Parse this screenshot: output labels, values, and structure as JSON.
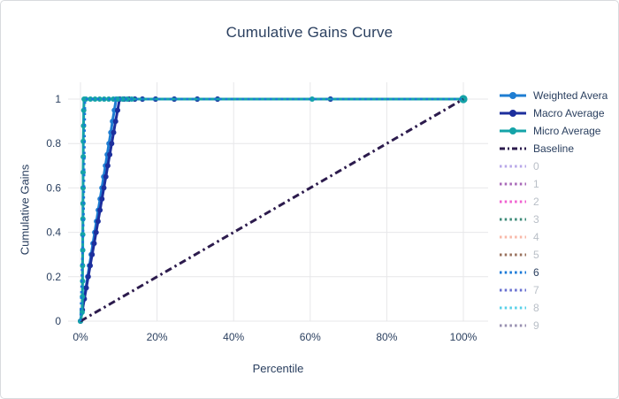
{
  "title": "Cumulative Gains Curve",
  "colors": {
    "text": "#2a3f5f",
    "inactive_text": "#b9bfc7",
    "grid": "#e7e7e9",
    "card_border": "#d8dade",
    "background": "#ffffff",
    "weighted": "#1e7dd2",
    "macro": "#1d2f9d",
    "micro": "#14a3a8",
    "baseline": "#2c1b4d",
    "class6": "#1878d8"
  },
  "chart_data": {
    "type": "line",
    "title": "Cumulative Gains Curve",
    "xlabel": "Percentile",
    "ylabel": "Cumulative Gains",
    "xlim": [
      0,
      100
    ],
    "ylim": [
      0,
      1
    ],
    "grid": true,
    "legend_position": "right",
    "xticks": {
      "values": [
        0,
        20,
        40,
        60,
        80,
        100
      ],
      "labels": [
        "0%",
        "20%",
        "40%",
        "60%",
        "80%",
        "100%"
      ]
    },
    "yticks": {
      "values": [
        0,
        0.2,
        0.4,
        0.6,
        0.8,
        1
      ],
      "labels": [
        "0",
        "0.2",
        "0.4",
        "0.6",
        "0.8",
        "1"
      ]
    },
    "series": [
      {
        "name": "Weighted Avera",
        "color": "#1e7dd2",
        "dash": "solid",
        "width": 3,
        "markers": true,
        "hidden": false,
        "points": [
          [
            0,
            0
          ],
          [
            0.47,
            0.05
          ],
          [
            0.93,
            0.1
          ],
          [
            1.4,
            0.15
          ],
          [
            1.86,
            0.2
          ],
          [
            2.33,
            0.25
          ],
          [
            2.79,
            0.3
          ],
          [
            3.26,
            0.35
          ],
          [
            3.72,
            0.4
          ],
          [
            4.19,
            0.45
          ],
          [
            4.65,
            0.5
          ],
          [
            5.12,
            0.55
          ],
          [
            5.58,
            0.6
          ],
          [
            6.05,
            0.65
          ],
          [
            6.51,
            0.7
          ],
          [
            6.98,
            0.75
          ],
          [
            7.44,
            0.8
          ],
          [
            7.91,
            0.85
          ],
          [
            8.37,
            0.9
          ],
          [
            8.84,
            0.95
          ],
          [
            9.3,
            1
          ],
          [
            10.3,
            1
          ],
          [
            11.5,
            1
          ],
          [
            12.7,
            1
          ],
          [
            14.2,
            1
          ],
          [
            16.2,
            1
          ],
          [
            19.6,
            1
          ],
          [
            24.5,
            1
          ],
          [
            30.5,
            1
          ],
          [
            35.8,
            1
          ],
          [
            65.3,
            1
          ],
          [
            100,
            1
          ]
        ]
      },
      {
        "name": "Macro Average",
        "color": "#1d2f9d",
        "dash": "solid",
        "width": 3,
        "markers": true,
        "hidden": false,
        "points": [
          [
            0,
            0
          ],
          [
            0.51,
            0.05
          ],
          [
            1.02,
            0.1
          ],
          [
            1.53,
            0.15
          ],
          [
            2.04,
            0.2
          ],
          [
            2.55,
            0.25
          ],
          [
            3.06,
            0.3
          ],
          [
            3.57,
            0.35
          ],
          [
            4.08,
            0.4
          ],
          [
            4.59,
            0.45
          ],
          [
            5.1,
            0.5
          ],
          [
            5.61,
            0.55
          ],
          [
            6.12,
            0.6
          ],
          [
            6.63,
            0.65
          ],
          [
            7.14,
            0.7
          ],
          [
            7.65,
            0.75
          ],
          [
            8.16,
            0.8
          ],
          [
            8.67,
            0.85
          ],
          [
            9.18,
            0.9
          ],
          [
            9.69,
            0.95
          ],
          [
            10.2,
            1
          ],
          [
            11.2,
            1
          ],
          [
            12.7,
            1
          ],
          [
            14.2,
            1
          ],
          [
            16.2,
            1
          ],
          [
            19.6,
            1
          ],
          [
            24.5,
            1
          ],
          [
            30.5,
            1
          ],
          [
            35.8,
            1
          ],
          [
            65.3,
            1
          ],
          [
            100,
            1
          ]
        ]
      },
      {
        "name": "Micro Average",
        "color": "#14a3a8",
        "dash": "solid",
        "width": 3,
        "markers": true,
        "end_big": true,
        "hidden": false,
        "points": [
          [
            0,
            0
          ],
          [
            0.45,
            0.04
          ],
          [
            0.5,
            0.11
          ],
          [
            0.55,
            0.18
          ],
          [
            0.55,
            0.25
          ],
          [
            0.6,
            0.32
          ],
          [
            0.6,
            0.39
          ],
          [
            0.65,
            0.46
          ],
          [
            0.65,
            0.53
          ],
          [
            0.7,
            0.6
          ],
          [
            0.7,
            0.67
          ],
          [
            0.75,
            0.74
          ],
          [
            0.75,
            0.81
          ],
          [
            0.8,
            0.88
          ],
          [
            0.85,
            0.95
          ],
          [
            0.95,
            1
          ],
          [
            1.4,
            1
          ],
          [
            2.6,
            1
          ],
          [
            3.8,
            1
          ],
          [
            5,
            1
          ],
          [
            6.2,
            1
          ],
          [
            7.4,
            1
          ],
          [
            8.6,
            1
          ],
          [
            9.8,
            1
          ],
          [
            11,
            1
          ],
          [
            12.2,
            1
          ],
          [
            13.4,
            1
          ],
          [
            60.5,
            1
          ],
          [
            100,
            1
          ]
        ]
      },
      {
        "name": "Baseline",
        "color": "#2c1b4d",
        "dash": "dashdot",
        "width": 3,
        "markers": false,
        "hidden": false,
        "points": [
          [
            0,
            0
          ],
          [
            100,
            1
          ]
        ]
      },
      {
        "name": "6",
        "color": "#1878d8",
        "dash": "dot",
        "width": 2.6,
        "markers": false,
        "hidden": false,
        "points": [
          [
            0,
            0
          ],
          [
            0.85,
            0.5
          ],
          [
            1.2,
            1
          ],
          [
            100,
            1
          ]
        ]
      }
    ]
  },
  "legend": {
    "items": [
      {
        "label": "Weighted Avera",
        "color": "#1e7dd2",
        "style": "line-marker",
        "active": true
      },
      {
        "label": "Macro Average",
        "color": "#1d2f9d",
        "style": "line-marker",
        "active": true
      },
      {
        "label": "Micro Average",
        "color": "#14a3a8",
        "style": "line-marker",
        "active": true
      },
      {
        "label": "Baseline",
        "color": "#2c1b4d",
        "style": "dashdot",
        "active": true
      },
      {
        "label": "0",
        "color": "#b8a8e8",
        "style": "dot",
        "active": false
      },
      {
        "label": "1",
        "color": "#a868b8",
        "style": "dot",
        "active": false
      },
      {
        "label": "2",
        "color": "#f060d0",
        "style": "dot",
        "active": false
      },
      {
        "label": "3",
        "color": "#3d8a78",
        "style": "dot",
        "active": false
      },
      {
        "label": "4",
        "color": "#f8b8a8",
        "style": "dot",
        "active": false
      },
      {
        "label": "5",
        "color": "#98705c",
        "style": "dot",
        "active": false
      },
      {
        "label": "6",
        "color": "#1878d8",
        "style": "dot",
        "active": true
      },
      {
        "label": "7",
        "color": "#6870d0",
        "style": "dot",
        "active": false
      },
      {
        "label": "8",
        "color": "#58d0e8",
        "style": "dot",
        "active": false
      },
      {
        "label": "9",
        "color": "#9890b0",
        "style": "dot",
        "active": false
      }
    ]
  }
}
